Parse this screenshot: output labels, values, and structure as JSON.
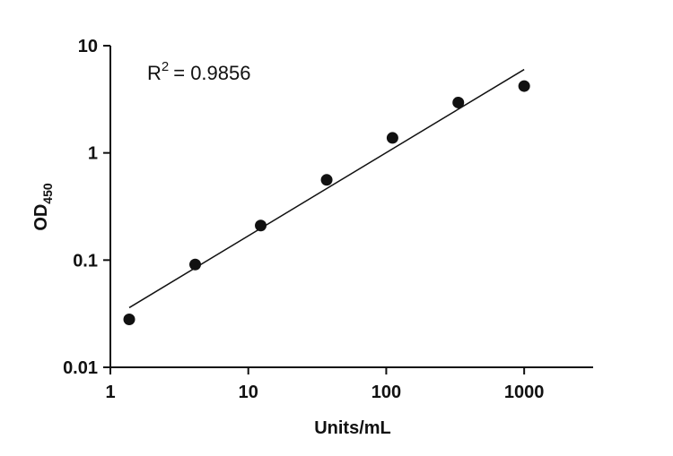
{
  "chart_data": {
    "type": "scatter",
    "x_scale": "log",
    "y_scale": "log",
    "xlim": [
      1,
      3162.28
    ],
    "ylim": [
      0.01,
      10
    ],
    "xticks": [
      1,
      10,
      100,
      1000
    ],
    "xtick_labels": [
      "1",
      "10",
      "100",
      "1000"
    ],
    "yticks": [
      0.01,
      0.1,
      1,
      10
    ],
    "ytick_labels": [
      "0.01",
      "0.1",
      "1",
      "10"
    ],
    "xlabel": "Units/mL",
    "ylabel_main": "OD",
    "ylabel_sub": "450",
    "grid": false,
    "points": [
      {
        "x": 1.37,
        "y": 0.028
      },
      {
        "x": 4.12,
        "y": 0.091
      },
      {
        "x": 12.3,
        "y": 0.21
      },
      {
        "x": 37.0,
        "y": 0.56
      },
      {
        "x": 111,
        "y": 1.38
      },
      {
        "x": 333,
        "y": 2.95
      },
      {
        "x": 1000,
        "y": 4.2
      }
    ],
    "fit_line": [
      {
        "x": 1.37,
        "y": 0.036
      },
      {
        "x": 1000,
        "y": 6.0
      }
    ],
    "annotation": {
      "r_prefix": "R",
      "r_sup": "2",
      "r_value": "= 0.9856"
    },
    "colors": {
      "points": "#111111",
      "axis": "#111111",
      "line": "#111111"
    }
  }
}
